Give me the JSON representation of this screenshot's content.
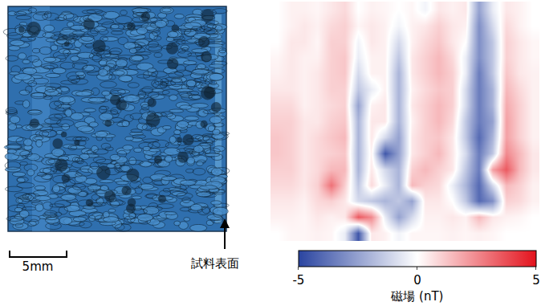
{
  "photo": {
    "scale_bar": "5mm",
    "arrow_label": "試料表面"
  },
  "chart_data": {
    "type": "heatmap",
    "tick_labels": false,
    "colorbar": {
      "title": "磁場 (nT)",
      "range": [
        -5,
        5
      ],
      "ticks": [
        -5,
        0,
        5
      ]
    },
    "cells": [
      [
        0,
        0.3,
        0.3,
        0.2,
        0.5,
        0.8,
        0,
        0.3,
        0.2,
        0,
        0.2,
        -0.3,
        0.5,
        0.3,
        0.5,
        -2.5,
        -0.5,
        0.5,
        0.3,
        0
      ],
      [
        0,
        0.3,
        0.5,
        0.3,
        0.8,
        1,
        0.2,
        0.5,
        0.3,
        -0.3,
        0.3,
        0.5,
        1,
        0.5,
        0.3,
        -3,
        -1,
        0.8,
        0.3,
        0
      ],
      [
        0,
        0.5,
        0.5,
        0.2,
        1,
        1,
        -0.3,
        0.5,
        0.3,
        -1,
        0.3,
        0.8,
        1.2,
        0.5,
        0,
        -3,
        -1.5,
        1,
        0.5,
        0.2
      ],
      [
        0.2,
        0.5,
        0.3,
        0.3,
        1,
        1.2,
        -0.5,
        0.3,
        0.3,
        -1.5,
        0.5,
        1,
        1.5,
        0.8,
        -0.5,
        -3,
        -1.5,
        1,
        0.5,
        0.2
      ],
      [
        0.3,
        0.5,
        0.3,
        0.5,
        1,
        1.2,
        -1,
        0.3,
        0.3,
        -2,
        0.5,
        1,
        1.5,
        1,
        -0.5,
        -3.5,
        -1.5,
        1.2,
        0.5,
        0.3
      ],
      [
        0.5,
        0.5,
        0.3,
        0.5,
        1,
        1,
        -1.5,
        -0.5,
        0.3,
        -2,
        0.3,
        0.8,
        1.2,
        1,
        -1,
        -3.5,
        -2,
        1.5,
        0.8,
        0.3
      ],
      [
        0.8,
        0.8,
        0.3,
        0.5,
        0.8,
        1,
        -2.5,
        0.3,
        0.5,
        -2,
        0.5,
        1,
        1.5,
        1,
        -1,
        -3.5,
        -2,
        1.8,
        1,
        0.3
      ],
      [
        1,
        1,
        0.5,
        0.5,
        1,
        1.2,
        -2,
        0.5,
        0.5,
        -2,
        0.3,
        1,
        1.5,
        0.8,
        -1.5,
        -3.5,
        -2.5,
        2,
        1,
        0.3
      ],
      [
        1.2,
        1,
        0.5,
        0.8,
        1.2,
        1.5,
        -2,
        0.5,
        -1,
        -2.5,
        0.5,
        1,
        1.2,
        0.5,
        -1.5,
        -4,
        -2,
        2,
        1,
        0.3
      ],
      [
        1.2,
        1,
        0.5,
        0.8,
        1,
        1.2,
        -2,
        0.3,
        -4.5,
        -2.5,
        0.5,
        1,
        1.5,
        0.5,
        -1,
        -3.5,
        -1.5,
        2.5,
        1.5,
        0.5
      ],
      [
        1,
        1,
        0.5,
        0.8,
        1.5,
        1.5,
        -2,
        0.5,
        -1,
        -2,
        1,
        1.5,
        1,
        0.5,
        -1.5,
        -3.5,
        2,
        3.5,
        1.5,
        0.5
      ],
      [
        0.8,
        0.8,
        0.5,
        1,
        3,
        1,
        -1.5,
        0.8,
        -0.5,
        -2,
        1.5,
        1,
        0.8,
        -0.5,
        -2,
        -4,
        -1,
        1.5,
        1,
        0.3
      ],
      [
        0.5,
        0.5,
        0.3,
        0.8,
        1,
        0.5,
        -1,
        -1.5,
        -2,
        -1.5,
        -2.5,
        0.5,
        0.5,
        0,
        -1.5,
        -4,
        -3,
        1,
        0.8,
        0.3
      ],
      [
        0.3,
        0.3,
        0.2,
        0.5,
        0.3,
        0.5,
        3.5,
        2.5,
        -0.5,
        -2.5,
        -1,
        0.3,
        0.3,
        0.5,
        0.3,
        1.5,
        0.5,
        0.3,
        0.2,
        0
      ],
      [
        0,
        0.2,
        0.2,
        0.3,
        0.2,
        -0.5,
        -4.5,
        0.5,
        0.3,
        -0.3,
        0.2,
        0.2,
        0.2,
        0.3,
        0.2,
        0.3,
        0.2,
        0,
        0,
        0
      ]
    ]
  }
}
